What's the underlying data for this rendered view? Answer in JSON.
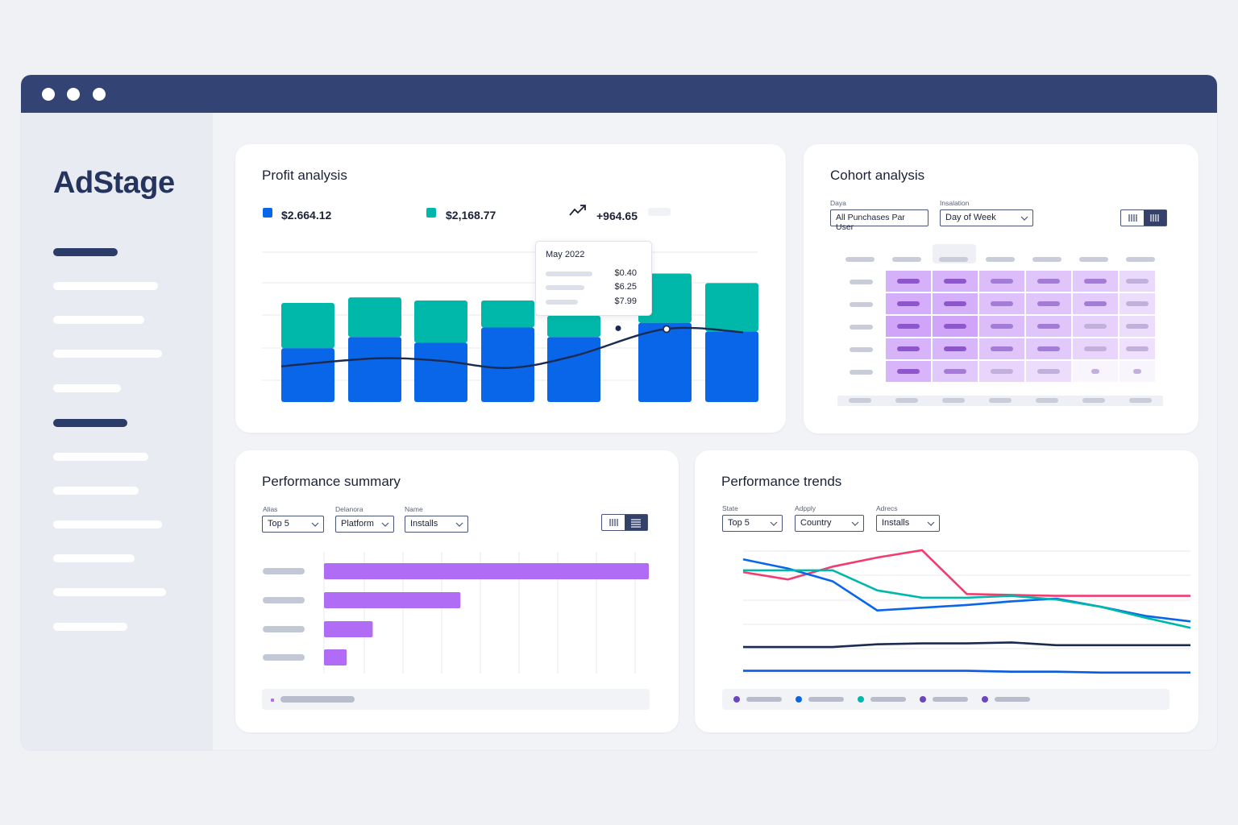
{
  "app": {
    "logo": "AdStage"
  },
  "colors": {
    "blue": "#0a66e8",
    "teal": "#00b8a9",
    "navy": "#1b2a52",
    "purple": "#b16cf5",
    "pink": "#f23c70",
    "window_bar": "#334474"
  },
  "window": {
    "controls": [
      "close-dot",
      "minimize-dot",
      "maximize-dot"
    ]
  },
  "sidebar": {
    "active_items": [
      0,
      5
    ],
    "item_count": 12
  },
  "profit": {
    "title": "Profit analysis",
    "legend": [
      {
        "value": "$2.664.12",
        "color": "#0a66e8"
      },
      {
        "value": "$2,168.77",
        "color": "#00b8a9"
      }
    ],
    "trend_value": "+964.65",
    "trend_icon": "trend-up-icon",
    "tooltip": {
      "title": "May 2022",
      "values": [
        "$0.40",
        "$6.25",
        "$7.99"
      ]
    },
    "chart_data": {
      "type": "bar",
      "stacked": true,
      "categories": [
        "",
        "",
        "",
        "",
        "",
        "",
        ""
      ],
      "series": [
        {
          "values": [
            68,
            82,
            75,
            94,
            82,
            100,
            89
          ],
          "color": "#0a66e8"
        },
        {
          "values": [
            57,
            50,
            53,
            34,
            27,
            62,
            61
          ],
          "color": "#00b8a9"
        }
      ],
      "line": {
        "values": [
          45,
          55,
          52,
          43,
          58,
          92,
          88
        ],
        "color": "#1b2a52"
      },
      "ylim": [
        0,
        190
      ],
      "grid": true
    }
  },
  "cohort": {
    "title": "Cohort analysis",
    "controls": [
      {
        "label": "Daya",
        "value": "All Punchases Par User"
      },
      {
        "label": "Insalation",
        "value": "Day of Week"
      }
    ],
    "view_toggle": [
      "bar-chart-icon",
      "table-icon"
    ],
    "heatmap": {
      "rows": [
        [
          0.75,
          0.72,
          0.6,
          0.5,
          0.45,
          0.25
        ],
        [
          0.78,
          0.76,
          0.55,
          0.5,
          0.4,
          0.2
        ],
        [
          0.9,
          0.9,
          0.6,
          0.5,
          0.35,
          0.2
        ],
        [
          0.72,
          0.68,
          0.5,
          0.45,
          0.3,
          0.15
        ],
        [
          0.7,
          0.45,
          0.3,
          0.2,
          0,
          0
        ]
      ]
    }
  },
  "summary": {
    "title": "Performance summary",
    "controls": [
      {
        "label": "Alias",
        "value": "Top 5"
      },
      {
        "label": "Delanora",
        "value": "Platform"
      },
      {
        "label": "Name",
        "value": "Installs"
      }
    ],
    "view_toggle": [
      "bar-chart-icon",
      "list-icon"
    ],
    "chart_data": {
      "type": "bar",
      "orientation": "horizontal",
      "categories": [
        "",
        "",
        "",
        ""
      ],
      "values": [
        100,
        42,
        15,
        7
      ],
      "xlim": [
        0,
        100
      ],
      "color": "#b16cf5",
      "grid": true
    }
  },
  "trends": {
    "title": "Performance trends",
    "controls": [
      {
        "label": "State",
        "value": "Top 5"
      },
      {
        "label": "Adpply",
        "value": "Country"
      },
      {
        "label": "Adrecs",
        "value": "Installs"
      }
    ],
    "chart_data": {
      "type": "line",
      "x": [
        0,
        1,
        2,
        3,
        4,
        5,
        6,
        7,
        8,
        9,
        10
      ],
      "series": [
        {
          "color": "#f23c70",
          "values": [
            64,
            56,
            70,
            80,
            88,
            40,
            39,
            38,
            38,
            38,
            38
          ]
        },
        {
          "color": "#0a66e8",
          "values": [
            78,
            68,
            54,
            22,
            25,
            28,
            32,
            35,
            26,
            16,
            10
          ]
        },
        {
          "color": "#00b8a9",
          "values": [
            66,
            66,
            66,
            44,
            36,
            36,
            38,
            34,
            26,
            14,
            3
          ]
        },
        {
          "color": "#1b2a52",
          "values": [
            -18,
            -18,
            -18,
            -15,
            -14,
            -14,
            -13,
            -16,
            -16,
            -16,
            -16
          ]
        },
        {
          "color": "#0a5be0",
          "values": [
            -44,
            -44,
            -44,
            -44,
            -44,
            -44,
            -45,
            -45,
            -46,
            -46,
            -46
          ]
        }
      ],
      "ylim": [
        -55,
        95
      ],
      "grid": true,
      "legend_colors": [
        "#6c45c2",
        "#0a66e8",
        "#00b8a9",
        "#6c45c2",
        "#6c45c2"
      ]
    }
  }
}
